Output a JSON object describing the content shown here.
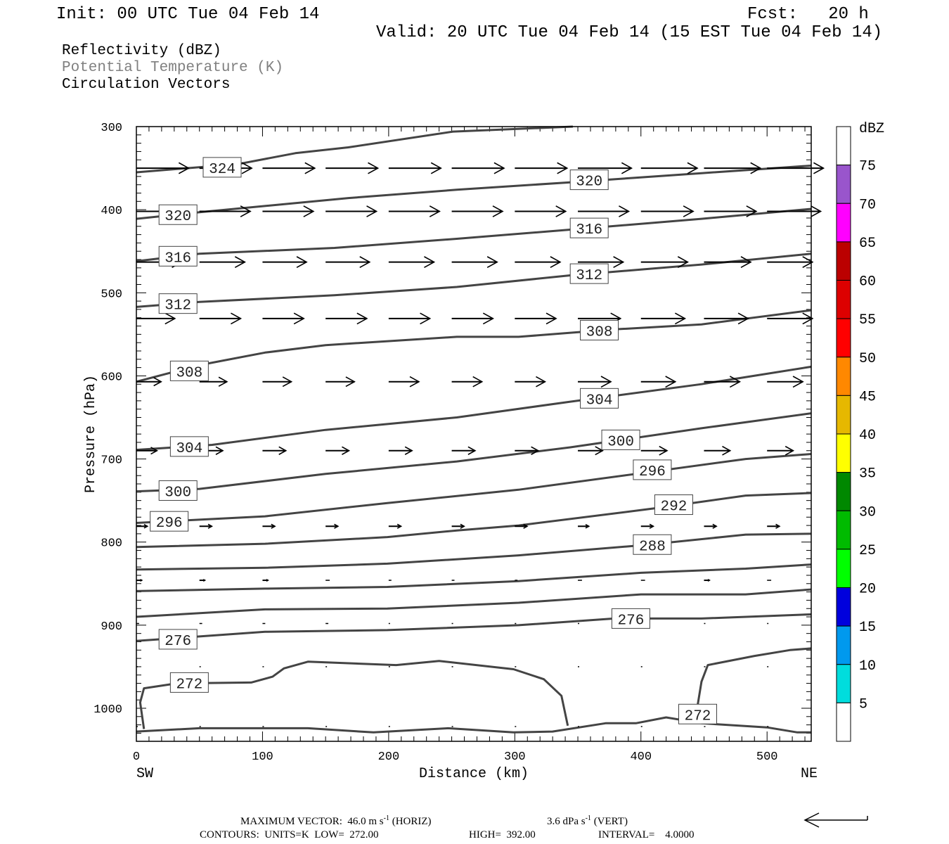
{
  "header": {
    "init": "Init: 00 UTC Tue 04 Feb 14",
    "fcst": "Fcst:   20 h",
    "valid": "Valid: 20 UTC Tue 04 Feb 14 (15 EST Tue 04 Feb 14)"
  },
  "legend": {
    "reflectivity": "Reflectivity (dBZ)",
    "theta": "Potential Temperature (K)",
    "vectors": "Circulation Vectors"
  },
  "colors": {
    "theta_contour": "#444444",
    "theta_legend": "#808080",
    "vector": "#000000"
  },
  "footer": {
    "max_vector_a": "MAXIMUM VECTOR:  46.0 m s",
    "max_vector_sup": "-1",
    "max_vector_b": " (HORIZ)",
    "vert_a": "3.6 dPa s",
    "vert_sup": "-1",
    "vert_b": " (VERT)",
    "contours_a": "CONTOURS:  UNITS=K  LOW=  272.00",
    "contours_b": "HIGH=  392.00",
    "contours_c": "INTERVAL=    4.0000"
  },
  "chart_data": {
    "type": "contour",
    "title": "Reflectivity (dBZ), Potential Temperature (K), Circulation Vectors",
    "xlabel": "Distance (km)",
    "ylabel": "Pressure (hPa)",
    "xlim": [
      0,
      535
    ],
    "ylim": [
      1038,
      300
    ],
    "x_ticks": [
      "0",
      "100",
      "200",
      "300",
      "400",
      "500"
    ],
    "x_tick_values": [
      0,
      100,
      200,
      300,
      400,
      500
    ],
    "y_ticks": [
      "300",
      "400",
      "500",
      "600",
      "700",
      "800",
      "900",
      "1000"
    ],
    "y_tick_values": [
      300,
      400,
      500,
      600,
      700,
      800,
      900,
      1000
    ],
    "x_end_labels": {
      "left": "SW",
      "right": "NE"
    },
    "contours": [
      {
        "value": 324,
        "points": [
          [
            0,
            355
          ],
          [
            81,
            345
          ],
          [
            126,
            332
          ],
          [
            168,
            325
          ],
          [
            251,
            306
          ],
          [
            346,
            300
          ]
        ]
      },
      {
        "value": 320,
        "points": [
          [
            0,
            411
          ],
          [
            50,
            403
          ],
          [
            168,
            386
          ],
          [
            254,
            376
          ],
          [
            344,
            367
          ],
          [
            448,
            356
          ],
          [
            535,
            347
          ]
        ]
      },
      {
        "value": 316,
        "points": [
          [
            0,
            462
          ],
          [
            50,
            453
          ],
          [
            157,
            446
          ],
          [
            254,
            435
          ],
          [
            344,
            424
          ],
          [
            448,
            411
          ],
          [
            535,
            399
          ]
        ]
      },
      {
        "value": 312,
        "points": [
          [
            0,
            517
          ],
          [
            50,
            511
          ],
          [
            157,
            503
          ],
          [
            254,
            493
          ],
          [
            344,
            479
          ],
          [
            448,
            466
          ],
          [
            535,
            453
          ]
        ]
      },
      {
        "value": 308,
        "points": [
          [
            0,
            607
          ],
          [
            50,
            587
          ],
          [
            102,
            572
          ],
          [
            150,
            563
          ],
          [
            254,
            553
          ],
          [
            303,
            553
          ],
          [
            379,
            544
          ],
          [
            448,
            538
          ],
          [
            535,
            521
          ]
        ]
      },
      {
        "value": 304,
        "points": [
          [
            0,
            689
          ],
          [
            60,
            683
          ],
          [
            150,
            665
          ],
          [
            254,
            650
          ],
          [
            344,
            631
          ],
          [
            448,
            610
          ],
          [
            535,
            589
          ]
        ]
      },
      {
        "value": 300,
        "points": [
          [
            0,
            739
          ],
          [
            50,
            736
          ],
          [
            150,
            718
          ],
          [
            254,
            703
          ],
          [
            344,
            686
          ],
          [
            448,
            663
          ],
          [
            535,
            645
          ]
        ]
      },
      {
        "value": 296,
        "points": [
          [
            0,
            777
          ],
          [
            102,
            769
          ],
          [
            199,
            753
          ],
          [
            303,
            737
          ],
          [
            396,
            718
          ],
          [
            483,
            700
          ],
          [
            535,
            694
          ]
        ]
      },
      {
        "value": 292,
        "points": [
          [
            0,
            806
          ],
          [
            102,
            802
          ],
          [
            199,
            794
          ],
          [
            254,
            786
          ],
          [
            303,
            780
          ],
          [
            413,
            759
          ],
          [
            483,
            744
          ],
          [
            535,
            741
          ]
        ]
      },
      {
        "value": 288,
        "points": [
          [
            0,
            833
          ],
          [
            102,
            831
          ],
          [
            199,
            826
          ],
          [
            303,
            816
          ],
          [
            400,
            804
          ],
          [
            483,
            791
          ],
          [
            535,
            790
          ]
        ]
      },
      {
        "value": 284,
        "points": [
          [
            0,
            859
          ],
          [
            102,
            856
          ],
          [
            199,
            854
          ],
          [
            303,
            847
          ],
          [
            400,
            837
          ],
          [
            483,
            832
          ],
          [
            535,
            827
          ]
        ]
      },
      {
        "value": 280,
        "points": [
          [
            0,
            890
          ],
          [
            102,
            881
          ],
          [
            199,
            880
          ],
          [
            303,
            873
          ],
          [
            400,
            863
          ],
          [
            483,
            863
          ],
          [
            535,
            857
          ]
        ]
      },
      {
        "value": 276,
        "points": [
          [
            0,
            919
          ],
          [
            102,
            908
          ],
          [
            199,
            906
          ],
          [
            303,
            900
          ],
          [
            379,
            892
          ],
          [
            448,
            892
          ],
          [
            535,
            887
          ]
        ]
      },
      {
        "value": 272,
        "points": [
          [
            6,
            1025
          ],
          [
            3,
            993
          ],
          [
            6,
            976
          ],
          [
            32,
            970
          ],
          [
            91,
            969
          ],
          [
            108,
            962
          ],
          [
            117,
            952
          ],
          [
            136,
            944
          ],
          [
            206,
            948
          ],
          [
            240,
            943
          ],
          [
            299,
            953
          ],
          [
            323,
            965
          ],
          [
            337,
            985
          ],
          [
            342,
            1021
          ]
        ]
      },
      {
        "value": 272,
        "points": [
          [
            445,
            996
          ],
          [
            448,
            968
          ],
          [
            453,
            948
          ],
          [
            490,
            937
          ],
          [
            518,
            930
          ],
          [
            535,
            928
          ]
        ]
      },
      {
        "value": 272,
        "points": [
          [
            0,
            1028
          ],
          [
            50,
            1024
          ],
          [
            136,
            1024
          ],
          [
            188,
            1029
          ],
          [
            247,
            1024
          ],
          [
            299,
            1029
          ],
          [
            330,
            1028
          ],
          [
            372,
            1018
          ],
          [
            396,
            1018
          ],
          [
            420,
            1011
          ],
          [
            448,
            1018
          ],
          [
            500,
            1023
          ],
          [
            524,
            1029
          ],
          [
            535,
            1029
          ]
        ]
      }
    ],
    "contour_labels": [
      {
        "text": "324",
        "x": 68,
        "p": 349
      },
      {
        "text": "320",
        "x": 33,
        "p": 406
      },
      {
        "text": "316",
        "x": 33,
        "p": 456
      },
      {
        "text": "312",
        "x": 33,
        "p": 513
      },
      {
        "text": "308",
        "x": 42,
        "p": 594
      },
      {
        "text": "304",
        "x": 42,
        "p": 685
      },
      {
        "text": "300",
        "x": 33,
        "p": 738
      },
      {
        "text": "296",
        "x": 26,
        "p": 775
      },
      {
        "text": "276",
        "x": 33,
        "p": 917
      },
      {
        "text": "272",
        "x": 42,
        "p": 969
      },
      {
        "text": "320",
        "x": 359,
        "p": 364
      },
      {
        "text": "316",
        "x": 359,
        "p": 422
      },
      {
        "text": "312",
        "x": 359,
        "p": 477
      },
      {
        "text": "308",
        "x": 367,
        "p": 545
      },
      {
        "text": "304",
        "x": 367,
        "p": 627
      },
      {
        "text": "300",
        "x": 384,
        "p": 677
      },
      {
        "text": "296",
        "x": 409,
        "p": 713
      },
      {
        "text": "292",
        "x": 426,
        "p": 755
      },
      {
        "text": "288",
        "x": 409,
        "p": 803
      },
      {
        "text": "276",
        "x": 392,
        "p": 892
      },
      {
        "text": "272",
        "x": 445,
        "p": 1007
      }
    ],
    "vectors": {
      "units": "m s-1",
      "reference_max": 46.0,
      "x_positions": [
        0,
        50,
        100,
        150,
        200,
        250,
        300,
        350,
        400,
        450,
        500
      ],
      "rows": [
        {
          "p": 350,
          "u": [
            38,
            38,
            38,
            38,
            38,
            38,
            38,
            39,
            41,
            41,
            41
          ]
        },
        {
          "p": 402,
          "u": [
            37,
            37,
            37,
            37,
            37,
            37,
            37,
            37,
            38,
            38,
            39
          ]
        },
        {
          "p": 463,
          "u": [
            33,
            33,
            32,
            32,
            33,
            33,
            33,
            33,
            34,
            34,
            33
          ]
        },
        {
          "p": 531,
          "u": [
            28,
            30,
            30,
            30,
            30,
            30,
            30,
            31,
            32,
            32,
            33
          ]
        },
        {
          "p": 607,
          "u": [
            18,
            20,
            21,
            21,
            22,
            22,
            22,
            24,
            25,
            26,
            26
          ]
        },
        {
          "p": 690,
          "u": [
            15,
            17,
            17,
            17,
            17,
            17,
            17,
            18,
            19,
            19,
            19
          ]
        },
        {
          "p": 781,
          "u": [
            8,
            9,
            9,
            9,
            9,
            9,
            9,
            8,
            9,
            9,
            9
          ]
        },
        {
          "p": 846,
          "u": [
            4,
            4,
            4,
            3,
            2,
            2,
            2,
            3,
            3,
            4,
            3
          ]
        },
        {
          "p": 898,
          "u": [
            2,
            2,
            2,
            2,
            1,
            1,
            1,
            1,
            1,
            1,
            1
          ]
        },
        {
          "p": 950,
          "u": [
            1,
            1,
            1,
            1,
            1,
            1,
            1,
            1,
            1,
            1,
            1
          ]
        },
        {
          "p": 1022,
          "u": [
            1,
            1,
            1,
            1,
            1,
            1,
            1,
            1,
            1,
            1,
            1
          ]
        }
      ]
    },
    "colorbar": {
      "title": "dBZ",
      "labels": [
        "75",
        "70",
        "65",
        "60",
        "55",
        "50",
        "45",
        "40",
        "35",
        "30",
        "25",
        "20",
        "15",
        "10",
        "5"
      ],
      "colors_top_to_bottom": [
        "#ffffff",
        "#9955cc",
        "#ff00ff",
        "#bb0000",
        "#dd0000",
        "#ff0000",
        "#ff8800",
        "#e6b800",
        "#ffff00",
        "#008800",
        "#00bb00",
        "#00ff00",
        "#0000dd",
        "#0099ee",
        "#00dddd",
        "#ffffff"
      ]
    }
  }
}
